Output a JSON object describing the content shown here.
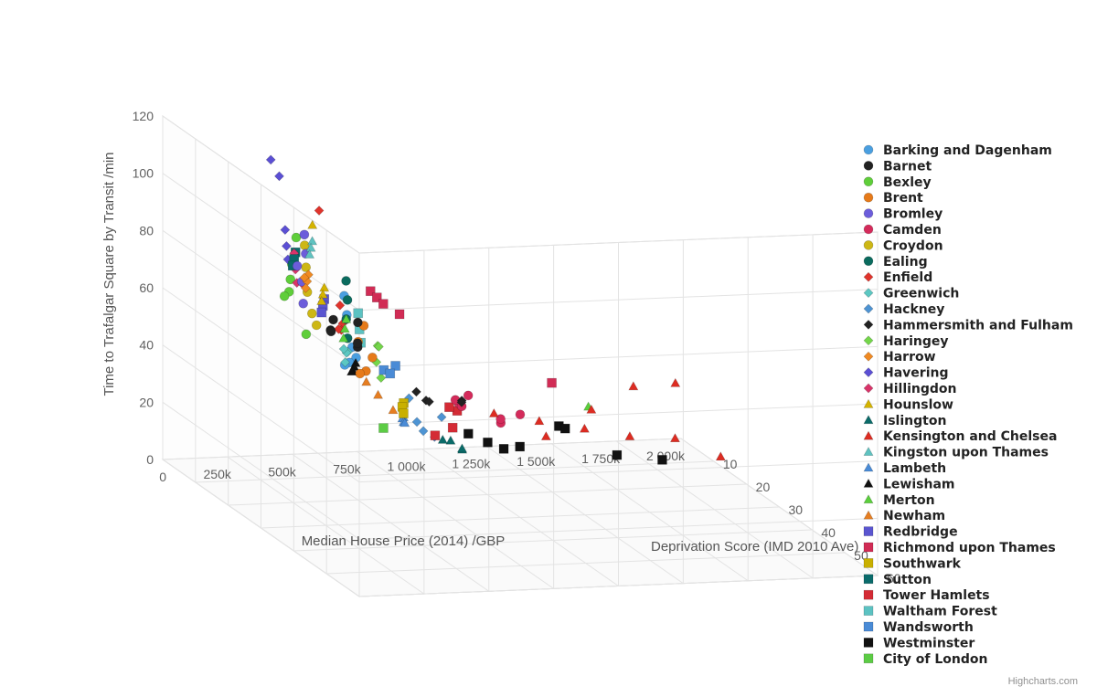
{
  "chart_data": {
    "type": "scatter",
    "subtype": "3d-scatter",
    "credits": "Highcharts.com",
    "x_axis": {
      "title": "Median House Price (2014) /GBP",
      "range": [
        0,
        2000000
      ],
      "ticks": [
        0,
        250000,
        500000,
        750000,
        1000000,
        1250000,
        1500000,
        1750000,
        2000000
      ],
      "tick_labels": [
        "0",
        "250k",
        "500k",
        "750k",
        "1 000k",
        "1 250k",
        "1 500k",
        "1 750k",
        "2 000k"
      ]
    },
    "y_axis": {
      "title": "Time to Trafalgar Square by Transit /min",
      "range": [
        0,
        120
      ],
      "ticks": [
        0,
        20,
        40,
        60,
        80,
        100,
        120
      ],
      "tick_labels": [
        "0",
        "20",
        "40",
        "60",
        "80",
        "100",
        "120"
      ]
    },
    "z_axis": {
      "title": "Deprivation Score (IMD 2010 Ave)",
      "range": [
        0,
        60
      ],
      "ticks": [
        10,
        20,
        30,
        40,
        50,
        60
      ],
      "tick_labels": [
        "10",
        "20",
        "30",
        "40",
        "50",
        "60"
      ]
    },
    "grid": true,
    "legend_position": "right",
    "series": [
      {
        "name": "Barking and Dagenham",
        "color": "#4a9fe0",
        "marker": "circle",
        "points": [
          [
            200000,
            72,
            42
          ],
          [
            215000,
            65,
            40
          ],
          [
            230000,
            80,
            38
          ],
          [
            190000,
            70,
            44
          ],
          [
            245000,
            85,
            36
          ],
          [
            260000,
            60,
            35
          ]
        ]
      },
      {
        "name": "Barnet",
        "color": "#222222",
        "marker": "circle",
        "points": [
          [
            420000,
            58,
            18
          ],
          [
            460000,
            55,
            15
          ],
          [
            500000,
            62,
            20
          ],
          [
            380000,
            65,
            22
          ],
          [
            550000,
            50,
            16
          ],
          [
            600000,
            48,
            12
          ]
        ]
      },
      {
        "name": "Bexley",
        "color": "#5fce3a",
        "marker": "circle",
        "points": [
          [
            240000,
            78,
            20
          ],
          [
            260000,
            72,
            18
          ],
          [
            220000,
            85,
            22
          ],
          [
            280000,
            68,
            15
          ],
          [
            300000,
            90,
            17
          ],
          [
            250000,
            62,
            24
          ]
        ]
      },
      {
        "name": "Brent",
        "color": "#e67a19",
        "marker": "circle",
        "points": [
          [
            400000,
            62,
            28
          ],
          [
            430000,
            58,
            30
          ],
          [
            380000,
            55,
            32
          ],
          [
            460000,
            65,
            25
          ],
          [
            420000,
            50,
            27
          ]
        ]
      },
      {
        "name": "Bromley",
        "color": "#6c5ddb",
        "marker": "circle",
        "points": [
          [
            360000,
            72,
            14
          ],
          [
            400000,
            80,
            12
          ],
          [
            340000,
            66,
            16
          ],
          [
            420000,
            85,
            10
          ],
          [
            380000,
            75,
            11
          ]
        ]
      },
      {
        "name": "Camden",
        "color": "#d42b5b",
        "marker": "circle",
        "points": [
          [
            750000,
            42,
            30
          ],
          [
            800000,
            38,
            28
          ],
          [
            900000,
            35,
            32
          ],
          [
            700000,
            45,
            35
          ],
          [
            850000,
            40,
            26
          ],
          [
            1000000,
            36,
            30
          ],
          [
            950000,
            33,
            28
          ]
        ]
      },
      {
        "name": "Croydon",
        "color": "#cdb715",
        "marker": "circle",
        "points": [
          [
            280000,
            75,
            22
          ],
          [
            300000,
            82,
            20
          ],
          [
            260000,
            70,
            25
          ],
          [
            320000,
            88,
            18
          ],
          [
            290000,
            65,
            24
          ]
        ]
      },
      {
        "name": "Ealing",
        "color": "#0a6b5e",
        "marker": "circle",
        "points": [
          [
            430000,
            65,
            22
          ],
          [
            460000,
            70,
            20
          ],
          [
            410000,
            60,
            24
          ],
          [
            480000,
            75,
            18
          ]
        ]
      },
      {
        "name": "Enfield",
        "color": "#e0342c",
        "marker": "diamond",
        "points": [
          [
            310000,
            68,
            30
          ],
          [
            330000,
            75,
            28
          ],
          [
            290000,
            72,
            32
          ],
          [
            350000,
            65,
            26
          ],
          [
            300000,
            105,
            24
          ]
        ]
      },
      {
        "name": "Greenwich",
        "color": "#5cc7c2",
        "marker": "diamond",
        "points": [
          [
            330000,
            60,
            30
          ],
          [
            350000,
            55,
            28
          ],
          [
            310000,
            62,
            32
          ],
          [
            370000,
            58,
            26
          ]
        ]
      },
      {
        "name": "Hackney",
        "color": "#4e94d3",
        "marker": "diamond",
        "points": [
          [
            450000,
            45,
            42
          ],
          [
            480000,
            42,
            45
          ],
          [
            500000,
            40,
            40
          ],
          [
            520000,
            48,
            44
          ],
          [
            470000,
            50,
            38
          ]
        ]
      },
      {
        "name": "Hammersmith and Fulham",
        "color": "#222222",
        "marker": "diamond",
        "points": [
          [
            700000,
            38,
            25
          ],
          [
            750000,
            35,
            22
          ],
          [
            800000,
            40,
            28
          ],
          [
            650000,
            42,
            26
          ],
          [
            850000,
            36,
            24
          ]
        ]
      },
      {
        "name": "Haringey",
        "color": "#74d64a",
        "marker": "diamond",
        "points": [
          [
            420000,
            58,
            32
          ],
          [
            450000,
            62,
            30
          ],
          [
            400000,
            55,
            35
          ],
          [
            480000,
            60,
            28
          ]
        ]
      },
      {
        "name": "Harrow",
        "color": "#f08a22",
        "marker": "diamond",
        "points": [
          [
            380000,
            72,
            14
          ],
          [
            400000,
            68,
            12
          ],
          [
            360000,
            76,
            16
          ],
          [
            420000,
            70,
            10
          ]
        ]
      },
      {
        "name": "Havering",
        "color": "#5b4fd4",
        "marker": "diamond",
        "points": [
          [
            250000,
            88,
            18
          ],
          [
            270000,
            92,
            16
          ],
          [
            230000,
            85,
            20
          ],
          [
            260000,
            110,
            15
          ],
          [
            240000,
            115,
            14
          ]
        ]
      },
      {
        "name": "Hillingdon",
        "color": "#d9346a",
        "marker": "diamond",
        "points": [
          [
            310000,
            78,
            16
          ],
          [
            330000,
            82,
            14
          ],
          [
            290000,
            75,
            18
          ],
          [
            350000,
            72,
            15
          ]
        ]
      },
      {
        "name": "Hounslow",
        "color": "#d4b300",
        "marker": "triangle",
        "points": [
          [
            340000,
            74,
            22
          ],
          [
            360000,
            70,
            20
          ],
          [
            320000,
            78,
            24
          ],
          [
            350000,
            95,
            18
          ]
        ]
      },
      {
        "name": "Islington",
        "color": "#0b6b69",
        "marker": "triangle",
        "points": [
          [
            600000,
            35,
            38
          ],
          [
            650000,
            33,
            40
          ],
          [
            700000,
            30,
            36
          ],
          [
            580000,
            38,
            42
          ]
        ]
      },
      {
        "name": "Kensington and Chelsea",
        "color": "#dd2c22",
        "marker": "triangle",
        "points": [
          [
            1000000,
            30,
            22
          ],
          [
            1200000,
            25,
            20
          ],
          [
            1400000,
            20,
            18
          ],
          [
            1600000,
            15,
            16
          ],
          [
            1800000,
            12,
            14
          ],
          [
            1100000,
            28,
            30
          ],
          [
            1300000,
            35,
            28
          ],
          [
            1500000,
            40,
            25
          ],
          [
            1700000,
            38,
            22
          ],
          [
            1900000,
            10,
            20
          ]
        ]
      },
      {
        "name": "Kingston upon Thames",
        "color": "#5fc2c0",
        "marker": "triangle",
        "points": [
          [
            420000,
            82,
            12
          ],
          [
            440000,
            78,
            10
          ],
          [
            400000,
            86,
            14
          ]
        ]
      },
      {
        "name": "Lambeth",
        "color": "#4a8bd6",
        "marker": "triangle",
        "points": [
          [
            520000,
            38,
            32
          ],
          [
            550000,
            35,
            30
          ],
          [
            500000,
            40,
            34
          ],
          [
            580000,
            33,
            28
          ]
        ]
      },
      {
        "name": "Lewisham",
        "color": "#111111",
        "marker": "triangle",
        "points": [
          [
            360000,
            55,
            30
          ],
          [
            380000,
            52,
            28
          ],
          [
            340000,
            58,
            32
          ],
          [
            400000,
            50,
            26
          ]
        ]
      },
      {
        "name": "Merton",
        "color": "#5bcf3c",
        "marker": "triangle",
        "points": [
          [
            450000,
            60,
            20
          ],
          [
            470000,
            55,
            18
          ],
          [
            430000,
            65,
            22
          ],
          [
            1200000,
            42,
            35
          ]
        ]
      },
      {
        "name": "Newham",
        "color": "#e67e22",
        "marker": "triangle",
        "points": [
          [
            300000,
            55,
            42
          ],
          [
            320000,
            52,
            45
          ],
          [
            280000,
            58,
            40
          ]
        ]
      },
      {
        "name": "Redbridge",
        "color": "#5a55d0",
        "marker": "square",
        "points": [
          [
            340000,
            70,
            22
          ],
          [
            360000,
            66,
            20
          ],
          [
            320000,
            74,
            24
          ]
        ]
      },
      {
        "name": "Richmond upon Thames",
        "color": "#d12c55",
        "marker": "square",
        "points": [
          [
            700000,
            62,
            10
          ],
          [
            750000,
            58,
            8
          ],
          [
            650000,
            66,
            12
          ],
          [
            800000,
            55,
            9
          ],
          [
            1400000,
            28,
            8
          ]
        ]
      },
      {
        "name": "Southwark",
        "color": "#c9b000",
        "marker": "square",
        "points": [
          [
            520000,
            42,
            32
          ],
          [
            550000,
            38,
            30
          ],
          [
            500000,
            45,
            34
          ]
        ]
      },
      {
        "name": "Sutton",
        "color": "#0a6b6b",
        "marker": "square",
        "points": [
          [
            330000,
            80,
            14
          ],
          [
            350000,
            76,
            12
          ],
          [
            310000,
            84,
            16
          ]
        ]
      },
      {
        "name": "Tower Hamlets",
        "color": "#d42b35",
        "marker": "square",
        "points": [
          [
            520000,
            40,
            42
          ],
          [
            550000,
            45,
            45
          ],
          [
            600000,
            48,
            40
          ],
          [
            580000,
            50,
            44
          ]
        ]
      },
      {
        "name": "Waltham Forest",
        "color": "#5cc2c2",
        "marker": "square",
        "points": [
          [
            380000,
            68,
            30
          ],
          [
            400000,
            72,
            28
          ],
          [
            360000,
            65,
            32
          ]
        ]
      },
      {
        "name": "Wandsworth",
        "color": "#4a8bd6",
        "marker": "square",
        "points": [
          [
            600000,
            45,
            20
          ],
          [
            650000,
            42,
            18
          ],
          [
            620000,
            48,
            22
          ]
        ]
      },
      {
        "name": "Westminster",
        "color": "#111111",
        "marker": "square",
        "points": [
          [
            900000,
            25,
            28
          ],
          [
            1000000,
            20,
            25
          ],
          [
            1100000,
            18,
            22
          ],
          [
            1300000,
            22,
            20
          ],
          [
            1500000,
            12,
            20
          ],
          [
            1700000,
            8,
            18
          ],
          [
            800000,
            30,
            30
          ],
          [
            1200000,
            28,
            26
          ]
        ]
      },
      {
        "name": "City of London",
        "color": "#5ccc45",
        "marker": "square",
        "points": [
          [
            700000,
            18,
            12
          ]
        ]
      }
    ]
  }
}
